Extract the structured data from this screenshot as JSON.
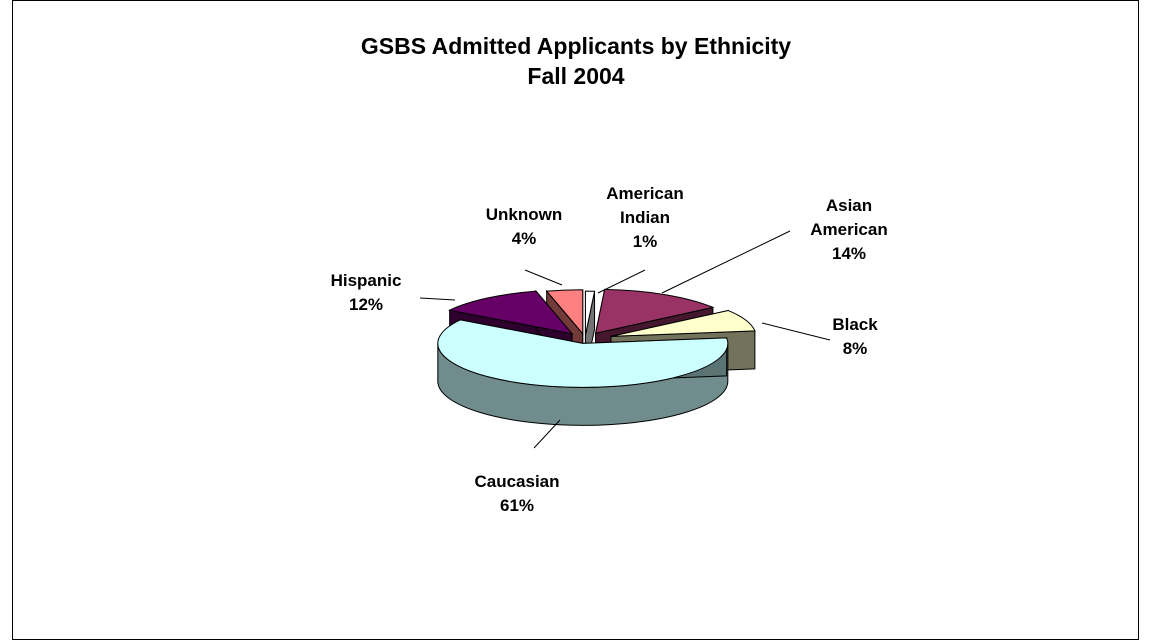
{
  "chart_data": {
    "type": "pie",
    "title": "GSBS Admitted Applicants by Ethnicity",
    "subtitle": "Fall 2004",
    "slices": [
      {
        "label": [
          "American",
          "Indian"
        ],
        "pct": "1%",
        "value": 1,
        "color": "#ffffff"
      },
      {
        "label": [
          "Asian",
          "American"
        ],
        "pct": "14%",
        "value": 14,
        "color": "#993366"
      },
      {
        "label": [
          "Black"
        ],
        "pct": "8%",
        "value": 8,
        "color": "#ffffcc"
      },
      {
        "label": [
          "Caucasian"
        ],
        "pct": "61%",
        "value": 61,
        "color": "#ccffff"
      },
      {
        "label": [
          "Hispanic"
        ],
        "pct": "12%",
        "value": 12,
        "color": "#660066"
      },
      {
        "label": [
          "Unknown"
        ],
        "pct": "4%",
        "value": 4,
        "color": "#ff8080"
      }
    ],
    "legend": "none",
    "style": "3d-exploded"
  }
}
